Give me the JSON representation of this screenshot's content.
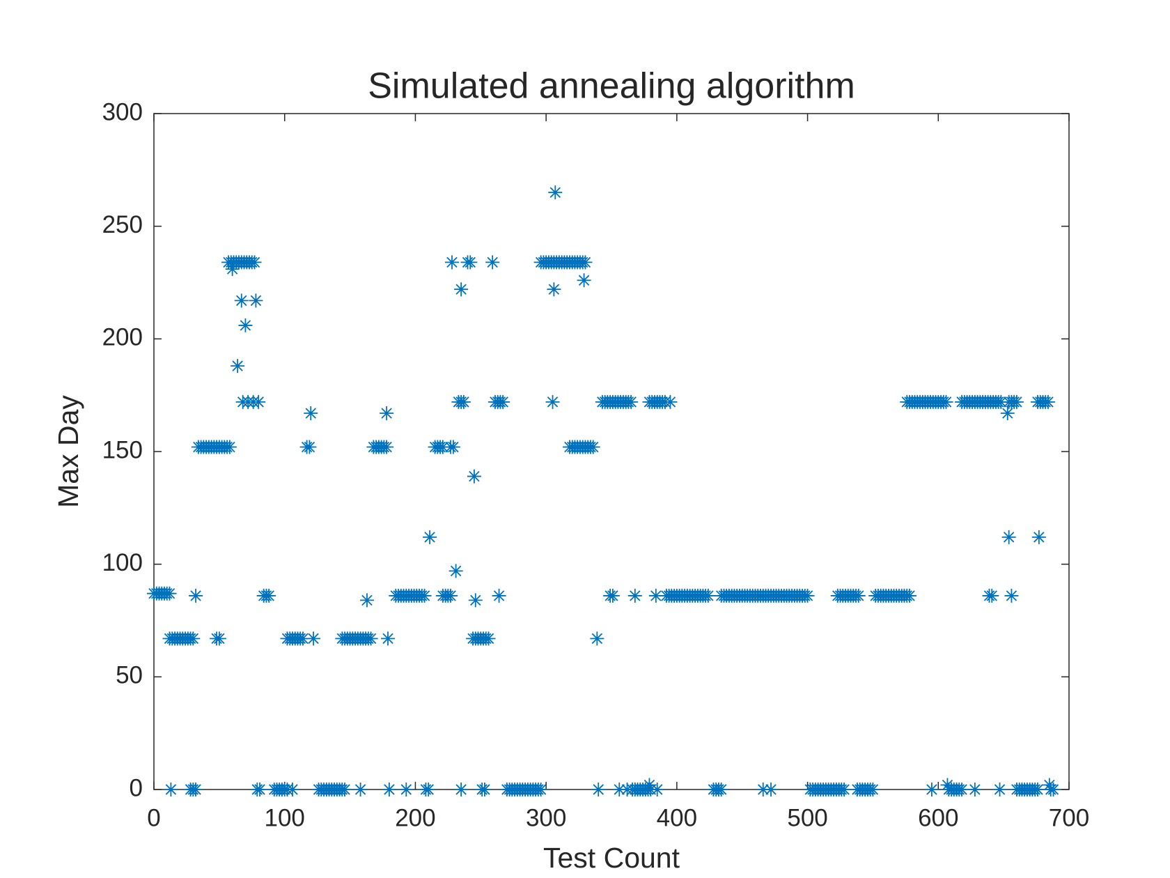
{
  "chart_data": {
    "type": "scatter",
    "title": "Simulated annealing algorithm",
    "xlabel": "Test Count",
    "ylabel": "Max Day",
    "xlim": [
      0,
      700
    ],
    "ylim": [
      0,
      300
    ],
    "xticks": [
      0,
      100,
      200,
      300,
      400,
      500,
      600,
      700
    ],
    "yticks": [
      0,
      50,
      100,
      150,
      200,
      250,
      300
    ],
    "marker": "asterisk",
    "color": "#0072BD",
    "x": [
      0,
      2,
      4,
      6,
      8,
      10,
      12,
      12,
      14,
      16,
      18,
      20,
      22,
      24,
      26,
      28,
      30,
      13,
      28,
      30,
      32,
      32,
      48,
      50,
      34,
      36,
      38,
      40,
      42,
      44,
      46,
      48,
      50,
      52,
      54,
      56,
      58,
      57,
      59,
      61,
      63,
      65,
      67,
      69,
      71,
      73,
      75,
      77,
      60,
      64,
      67,
      78,
      70,
      68,
      72,
      76,
      80,
      79,
      81,
      84,
      86,
      88,
      92,
      94,
      96,
      98,
      100,
      102,
      106,
      102,
      104,
      106,
      108,
      110,
      112,
      114,
      122,
      117,
      119,
      120,
      126,
      128,
      130,
      132,
      134,
      136,
      138,
      140,
      142,
      144,
      146,
      158,
      144,
      146,
      148,
      150,
      152,
      154,
      156,
      158,
      160,
      162,
      164,
      166,
      163,
      168,
      170,
      172,
      174,
      176,
      178,
      178,
      179,
      180,
      193,
      185,
      187,
      189,
      191,
      193,
      195,
      197,
      199,
      201,
      203,
      205,
      207,
      211,
      208,
      210,
      215,
      217,
      219,
      221,
      227,
      229,
      221,
      223,
      225,
      227,
      228,
      231,
      235,
      235,
      233,
      235,
      237,
      240,
      242,
      244,
      246,
      248,
      250,
      252,
      254,
      256,
      245,
      246,
      251,
      253,
      259,
      261,
      263,
      265,
      267,
      264,
      270,
      272,
      274,
      276,
      278,
      280,
      282,
      284,
      286,
      288,
      290,
      292,
      294,
      296,
      296,
      298,
      300,
      302,
      304,
      306,
      308,
      310,
      312,
      314,
      316,
      318,
      320,
      322,
      324,
      326,
      328,
      330,
      306,
      307,
      305,
      329,
      318,
      320,
      322,
      324,
      326,
      328,
      330,
      332,
      334,
      336,
      339,
      340,
      343,
      345,
      347,
      349,
      351,
      353,
      355,
      357,
      359,
      361,
      363,
      365,
      349,
      351,
      368,
      356,
      362,
      366,
      368,
      370,
      372,
      374,
      376,
      378,
      380,
      385,
      379,
      379,
      381,
      383,
      385,
      387,
      389,
      391,
      395,
      384,
      392,
      394,
      396,
      398,
      400,
      402,
      404,
      406,
      408,
      410,
      412,
      414,
      416,
      418,
      420,
      422,
      424,
      428,
      430,
      432,
      434,
      434,
      436,
      438,
      440,
      442,
      444,
      446,
      448,
      450,
      452,
      454,
      456,
      458,
      460,
      462,
      464,
      466,
      468,
      470,
      472,
      474,
      476,
      478,
      480,
      482,
      484,
      486,
      488,
      490,
      492,
      494,
      496,
      498,
      500,
      466,
      472,
      502,
      504,
      506,
      508,
      510,
      512,
      514,
      516,
      518,
      520,
      522,
      524,
      526,
      528,
      523,
      525,
      527,
      529,
      531,
      533,
      535,
      537,
      539,
      538,
      540,
      542,
      544,
      546,
      548,
      550,
      552,
      554,
      556,
      558,
      560,
      562,
      564,
      566,
      568,
      570,
      572,
      574,
      576,
      578,
      576,
      578,
      580,
      582,
      584,
      586,
      588,
      590,
      592,
      594,
      596,
      598,
      600,
      602,
      604,
      606,
      618,
      620,
      622,
      624,
      626,
      628,
      630,
      632,
      634,
      636,
      638,
      640,
      642,
      644,
      646,
      648,
      595,
      608,
      610,
      612,
      614,
      616,
      618,
      628,
      607,
      653,
      654,
      677,
      639,
      641,
      656,
      654,
      656,
      658,
      660,
      676,
      678,
      680,
      682,
      684,
      647,
      660,
      662,
      664,
      666,
      668,
      670,
      672,
      674,
      676,
      686,
      688,
      685
    ],
    "values": [
      87,
      87,
      87,
      87,
      87,
      87,
      87,
      67,
      67,
      67,
      67,
      67,
      67,
      67,
      67,
      67,
      67,
      0,
      0,
      0,
      0,
      86,
      67,
      67,
      152,
      152,
      152,
      152,
      152,
      152,
      152,
      152,
      152,
      152,
      152,
      152,
      152,
      234,
      234,
      234,
      234,
      234,
      234,
      234,
      234,
      234,
      234,
      234,
      231,
      188,
      217,
      217,
      206,
      172,
      172,
      172,
      172,
      0,
      0,
      86,
      86,
      86,
      0,
      0,
      0,
      0,
      0,
      0,
      0,
      67,
      67,
      67,
      67,
      67,
      67,
      67,
      67,
      152,
      152,
      167,
      0,
      0,
      0,
      0,
      0,
      0,
      0,
      0,
      0,
      0,
      0,
      0,
      67,
      67,
      67,
      67,
      67,
      67,
      67,
      67,
      67,
      67,
      67,
      67,
      84,
      152,
      152,
      152,
      152,
      152,
      152,
      167,
      67,
      0,
      0,
      86,
      86,
      86,
      86,
      86,
      86,
      86,
      86,
      86,
      86,
      86,
      86,
      112,
      0,
      0,
      152,
      152,
      152,
      152,
      152,
      152,
      86,
      86,
      86,
      86,
      234,
      97,
      0,
      222,
      172,
      172,
      172,
      234,
      234,
      67,
      67,
      67,
      67,
      67,
      67,
      67,
      139,
      84,
      0,
      0,
      234,
      172,
      172,
      172,
      172,
      86,
      0,
      0,
      0,
      0,
      0,
      0,
      0,
      0,
      0,
      0,
      0,
      0,
      0,
      0,
      234,
      234,
      234,
      234,
      234,
      234,
      234,
      234,
      234,
      234,
      234,
      234,
      234,
      234,
      234,
      234,
      234,
      234,
      222,
      265,
      172,
      226,
      152,
      152,
      152,
      152,
      152,
      152,
      152,
      152,
      152,
      152,
      67,
      0,
      172,
      172,
      172,
      172,
      172,
      172,
      172,
      172,
      172,
      172,
      172,
      172,
      86,
      86,
      86,
      0,
      0,
      0,
      0,
      0,
      0,
      0,
      0,
      0,
      0,
      0,
      2,
      172,
      172,
      172,
      172,
      172,
      172,
      172,
      172,
      86,
      86,
      86,
      86,
      86,
      86,
      86,
      86,
      86,
      86,
      86,
      86,
      86,
      86,
      86,
      86,
      86,
      86,
      0,
      0,
      0,
      0,
      86,
      86,
      86,
      86,
      86,
      86,
      86,
      86,
      86,
      86,
      86,
      86,
      86,
      86,
      86,
      86,
      86,
      86,
      86,
      86,
      86,
      86,
      86,
      86,
      86,
      86,
      86,
      86,
      86,
      86,
      86,
      86,
      86,
      86,
      0,
      0,
      0,
      0,
      0,
      0,
      0,
      0,
      0,
      0,
      0,
      0,
      0,
      0,
      0,
      0,
      86,
      86,
      86,
      86,
      86,
      86,
      86,
      86,
      86,
      0,
      0,
      0,
      0,
      0,
      0,
      0,
      86,
      86,
      86,
      86,
      86,
      86,
      86,
      86,
      86,
      86,
      86,
      86,
      86,
      86,
      172,
      172,
      172,
      172,
      172,
      172,
      172,
      172,
      172,
      172,
      172,
      172,
      172,
      172,
      172,
      172,
      172,
      172,
      172,
      172,
      172,
      172,
      172,
      172,
      172,
      172,
      172,
      172,
      172,
      172,
      172,
      172,
      0,
      0,
      0,
      0,
      0,
      0,
      0,
      0,
      2,
      167,
      112,
      112,
      86,
      86,
      86,
      172,
      172,
      172,
      172,
      172,
      172,
      172,
      172,
      172,
      0,
      0,
      0,
      0,
      0,
      0,
      0,
      0,
      0,
      0,
      0,
      0,
      2
    ]
  }
}
